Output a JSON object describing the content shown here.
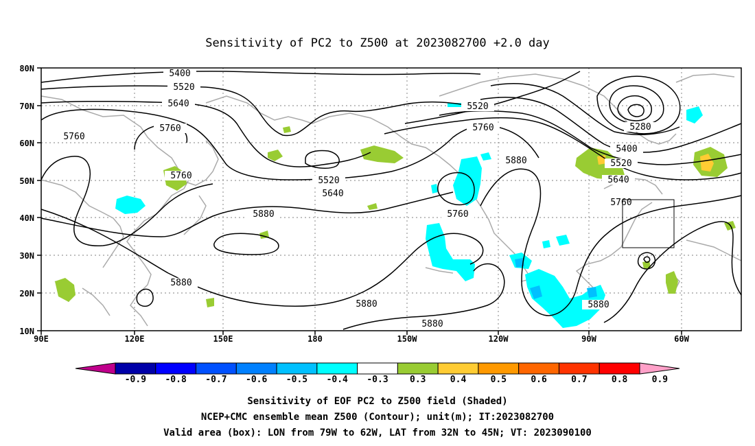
{
  "title": "Sensitivity of PC2 to Z500 at 2023082700 +2.0 day",
  "lat_labels": [
    "80N",
    "70N",
    "60N",
    "50N",
    "40N",
    "30N",
    "20N",
    "10N"
  ],
  "lon_labels": [
    "90E",
    "120E",
    "150E",
    "180",
    "150W",
    "120W",
    "90W",
    "60W"
  ],
  "contour_labels": {
    "c5400a": "5400",
    "c5520a": "5520",
    "c5640a": "5640",
    "c5760a": "5760",
    "c5760b": "5760",
    "c5760c": "5760",
    "c5520b": "5520",
    "c5640b": "5640",
    "c5880a": "5880",
    "c5880b": "5880",
    "c5880c": "5880",
    "c5880d": "5880",
    "c5520c": "5520",
    "c5760d": "5760",
    "c5880e": "5880",
    "c5760e": "5760",
    "c5280": "5280",
    "c5400b": "5400",
    "c5520d": "5520",
    "c5640c": "5640",
    "c5760f": "5760",
    "c5880f": "5880"
  },
  "colorbar": {
    "labels": [
      "-0.9",
      "-0.8",
      "-0.7",
      "-0.6",
      "-0.5",
      "-0.4",
      "-0.3",
      "0.3",
      "0.4",
      "0.5",
      "0.6",
      "0.7",
      "0.8",
      "0.9"
    ],
    "colors": [
      "#0000a8",
      "#0000ff",
      "#0050ff",
      "#0080ff",
      "#00c0ff",
      "#00ffff",
      "#ffffff",
      "#99cc33",
      "#ffcc33",
      "#ff9900",
      "#ff6600",
      "#ff3300",
      "#ff0000"
    ],
    "low_end_color": "#c0008c",
    "high_end_color": "#ffa0c8"
  },
  "footer": {
    "line1": "Sensitivity of EOF PC2 to Z500 field (Shaded)",
    "line2": "NCEP+CMC ensemble mean Z500 (Contour); unit(m); IT:2023082700",
    "line3": "Valid area (box): LON from 79W to 62W, LAT from 32N to 45N; VT: 2023090100"
  }
}
